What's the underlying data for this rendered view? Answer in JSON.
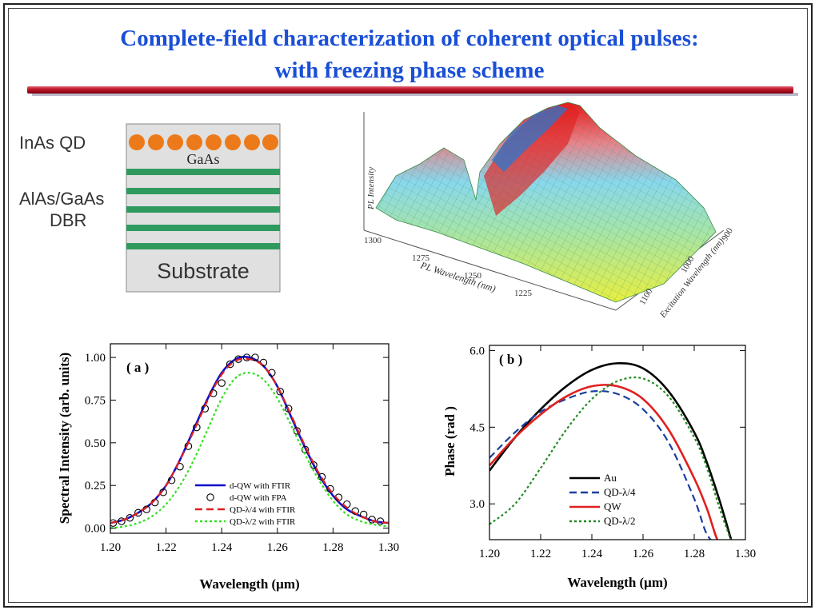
{
  "slide": {
    "title_line1": "Complete-field characterization of coherent optical pulses:",
    "title_line2": "with freezing phase scheme"
  },
  "structure": {
    "label_qd": "InAs QD",
    "label_gaas": "GaAs",
    "label_dbr1": "AlAs/GaAs",
    "label_dbr2": "DBR",
    "label_substrate": "Substrate",
    "colors": {
      "dot": "#ec7a1a",
      "layer": "#2f9a5e",
      "bg": "#e0e0e0"
    }
  },
  "surface_plot": {
    "z_label": "PL Intensity",
    "x_label": "PL Wavelength (nm)",
    "x_ticks": [
      "1300",
      "1275",
      "1250",
      "1225"
    ],
    "y_label": "Excitation Wavelength (nm)",
    "y_ticks": [
      "1100",
      "1000",
      "900"
    ]
  },
  "chart_data": [
    {
      "type": "line",
      "panel_label": "( a )",
      "xlabel": "Wavelength (μm)",
      "ylabel": "Spectral Intensity (arb. units)",
      "xlim": [
        1.2,
        1.3
      ],
      "ylim": [
        -0.03,
        1.08
      ],
      "x_ticks": [
        "1.20",
        "1.22",
        "1.24",
        "1.26",
        "1.28",
        "1.30"
      ],
      "y_ticks": [
        "0.00",
        "0.25",
        "0.50",
        "0.75",
        "1.00"
      ],
      "x": [
        1.2,
        1.205,
        1.21,
        1.215,
        1.22,
        1.225,
        1.23,
        1.235,
        1.24,
        1.245,
        1.25,
        1.255,
        1.26,
        1.265,
        1.27,
        1.275,
        1.28,
        1.285,
        1.29,
        1.295,
        1.3
      ],
      "series": [
        {
          "name": "d-QW with FTIR",
          "style": "solid",
          "color": "#1010c8",
          "values": [
            0.03,
            0.05,
            0.09,
            0.15,
            0.25,
            0.4,
            0.58,
            0.76,
            0.91,
            0.99,
            1.0,
            0.95,
            0.83,
            0.65,
            0.47,
            0.31,
            0.19,
            0.11,
            0.07,
            0.04,
            0.03
          ]
        },
        {
          "name": "d-QW with FPA",
          "style": "markers",
          "color": "#000000",
          "x": [
            1.201,
            1.204,
            1.207,
            1.21,
            1.213,
            1.216,
            1.219,
            1.222,
            1.225,
            1.228,
            1.231,
            1.234,
            1.237,
            1.24,
            1.243,
            1.246,
            1.249,
            1.252,
            1.255,
            1.258,
            1.261,
            1.264,
            1.267,
            1.27,
            1.273,
            1.276,
            1.279,
            1.282,
            1.285,
            1.288,
            1.291,
            1.294,
            1.297
          ],
          "values": [
            0.03,
            0.04,
            0.06,
            0.09,
            0.11,
            0.15,
            0.21,
            0.28,
            0.36,
            0.48,
            0.59,
            0.7,
            0.79,
            0.85,
            0.96,
            0.99,
            1.0,
            1.0,
            0.97,
            0.91,
            0.8,
            0.7,
            0.57,
            0.46,
            0.37,
            0.3,
            0.23,
            0.18,
            0.14,
            0.1,
            0.08,
            0.05,
            0.04
          ]
        },
        {
          "name": "QD-λ/4 with FTIR",
          "style": "dashed",
          "color": "#e02020",
          "values": [
            0.03,
            0.05,
            0.09,
            0.15,
            0.25,
            0.4,
            0.57,
            0.75,
            0.9,
            0.98,
            0.99,
            0.95,
            0.83,
            0.66,
            0.48,
            0.32,
            0.2,
            0.12,
            0.07,
            0.04,
            0.03
          ]
        },
        {
          "name": "QD-λ/2 with FTIR",
          "style": "dotted",
          "color": "#33e020",
          "values": [
            0.0,
            0.01,
            0.03,
            0.07,
            0.14,
            0.25,
            0.4,
            0.58,
            0.76,
            0.88,
            0.91,
            0.87,
            0.76,
            0.6,
            0.43,
            0.28,
            0.16,
            0.08,
            0.04,
            0.02,
            0.01
          ]
        }
      ]
    },
    {
      "type": "line",
      "panel_label": "( b )",
      "xlabel": "Wavelength (μm)",
      "ylabel": "Phase (rad )",
      "xlim": [
        1.2,
        1.3
      ],
      "ylim": [
        2.3,
        6.1
      ],
      "x_ticks": [
        "1.20",
        "1.22",
        "1.24",
        "1.26",
        "1.28",
        "1.30"
      ],
      "y_ticks": [
        "3.0",
        "4.5",
        "6.0"
      ],
      "x": [
        1.2,
        1.21,
        1.22,
        1.23,
        1.24,
        1.25,
        1.26,
        1.27,
        1.28,
        1.285,
        1.29,
        1.295
      ],
      "series": [
        {
          "name": "Au",
          "style": "solid",
          "color": "#000000",
          "values": [
            3.65,
            4.3,
            4.85,
            5.3,
            5.62,
            5.75,
            5.65,
            5.2,
            4.4,
            3.8,
            3.05,
            2.2
          ]
        },
        {
          "name": "QD-λ/4",
          "style": "dashed",
          "color": "#1a3fa0",
          "values": [
            3.9,
            4.4,
            4.8,
            5.05,
            5.2,
            5.15,
            4.85,
            4.2,
            3.1,
            2.4,
            2.2,
            2.2
          ]
        },
        {
          "name": "QW",
          "style": "solid",
          "color": "#e02020",
          "values": [
            3.75,
            4.3,
            4.75,
            5.1,
            5.3,
            5.3,
            5.05,
            4.45,
            3.5,
            2.9,
            2.2,
            2.2
          ]
        },
        {
          "name": "QD-λ/2",
          "style": "dotted",
          "color": "#228a22",
          "values": [
            2.6,
            3.0,
            3.7,
            4.45,
            5.05,
            5.4,
            5.45,
            5.1,
            4.3,
            3.7,
            2.9,
            2.2
          ]
        }
      ]
    }
  ]
}
